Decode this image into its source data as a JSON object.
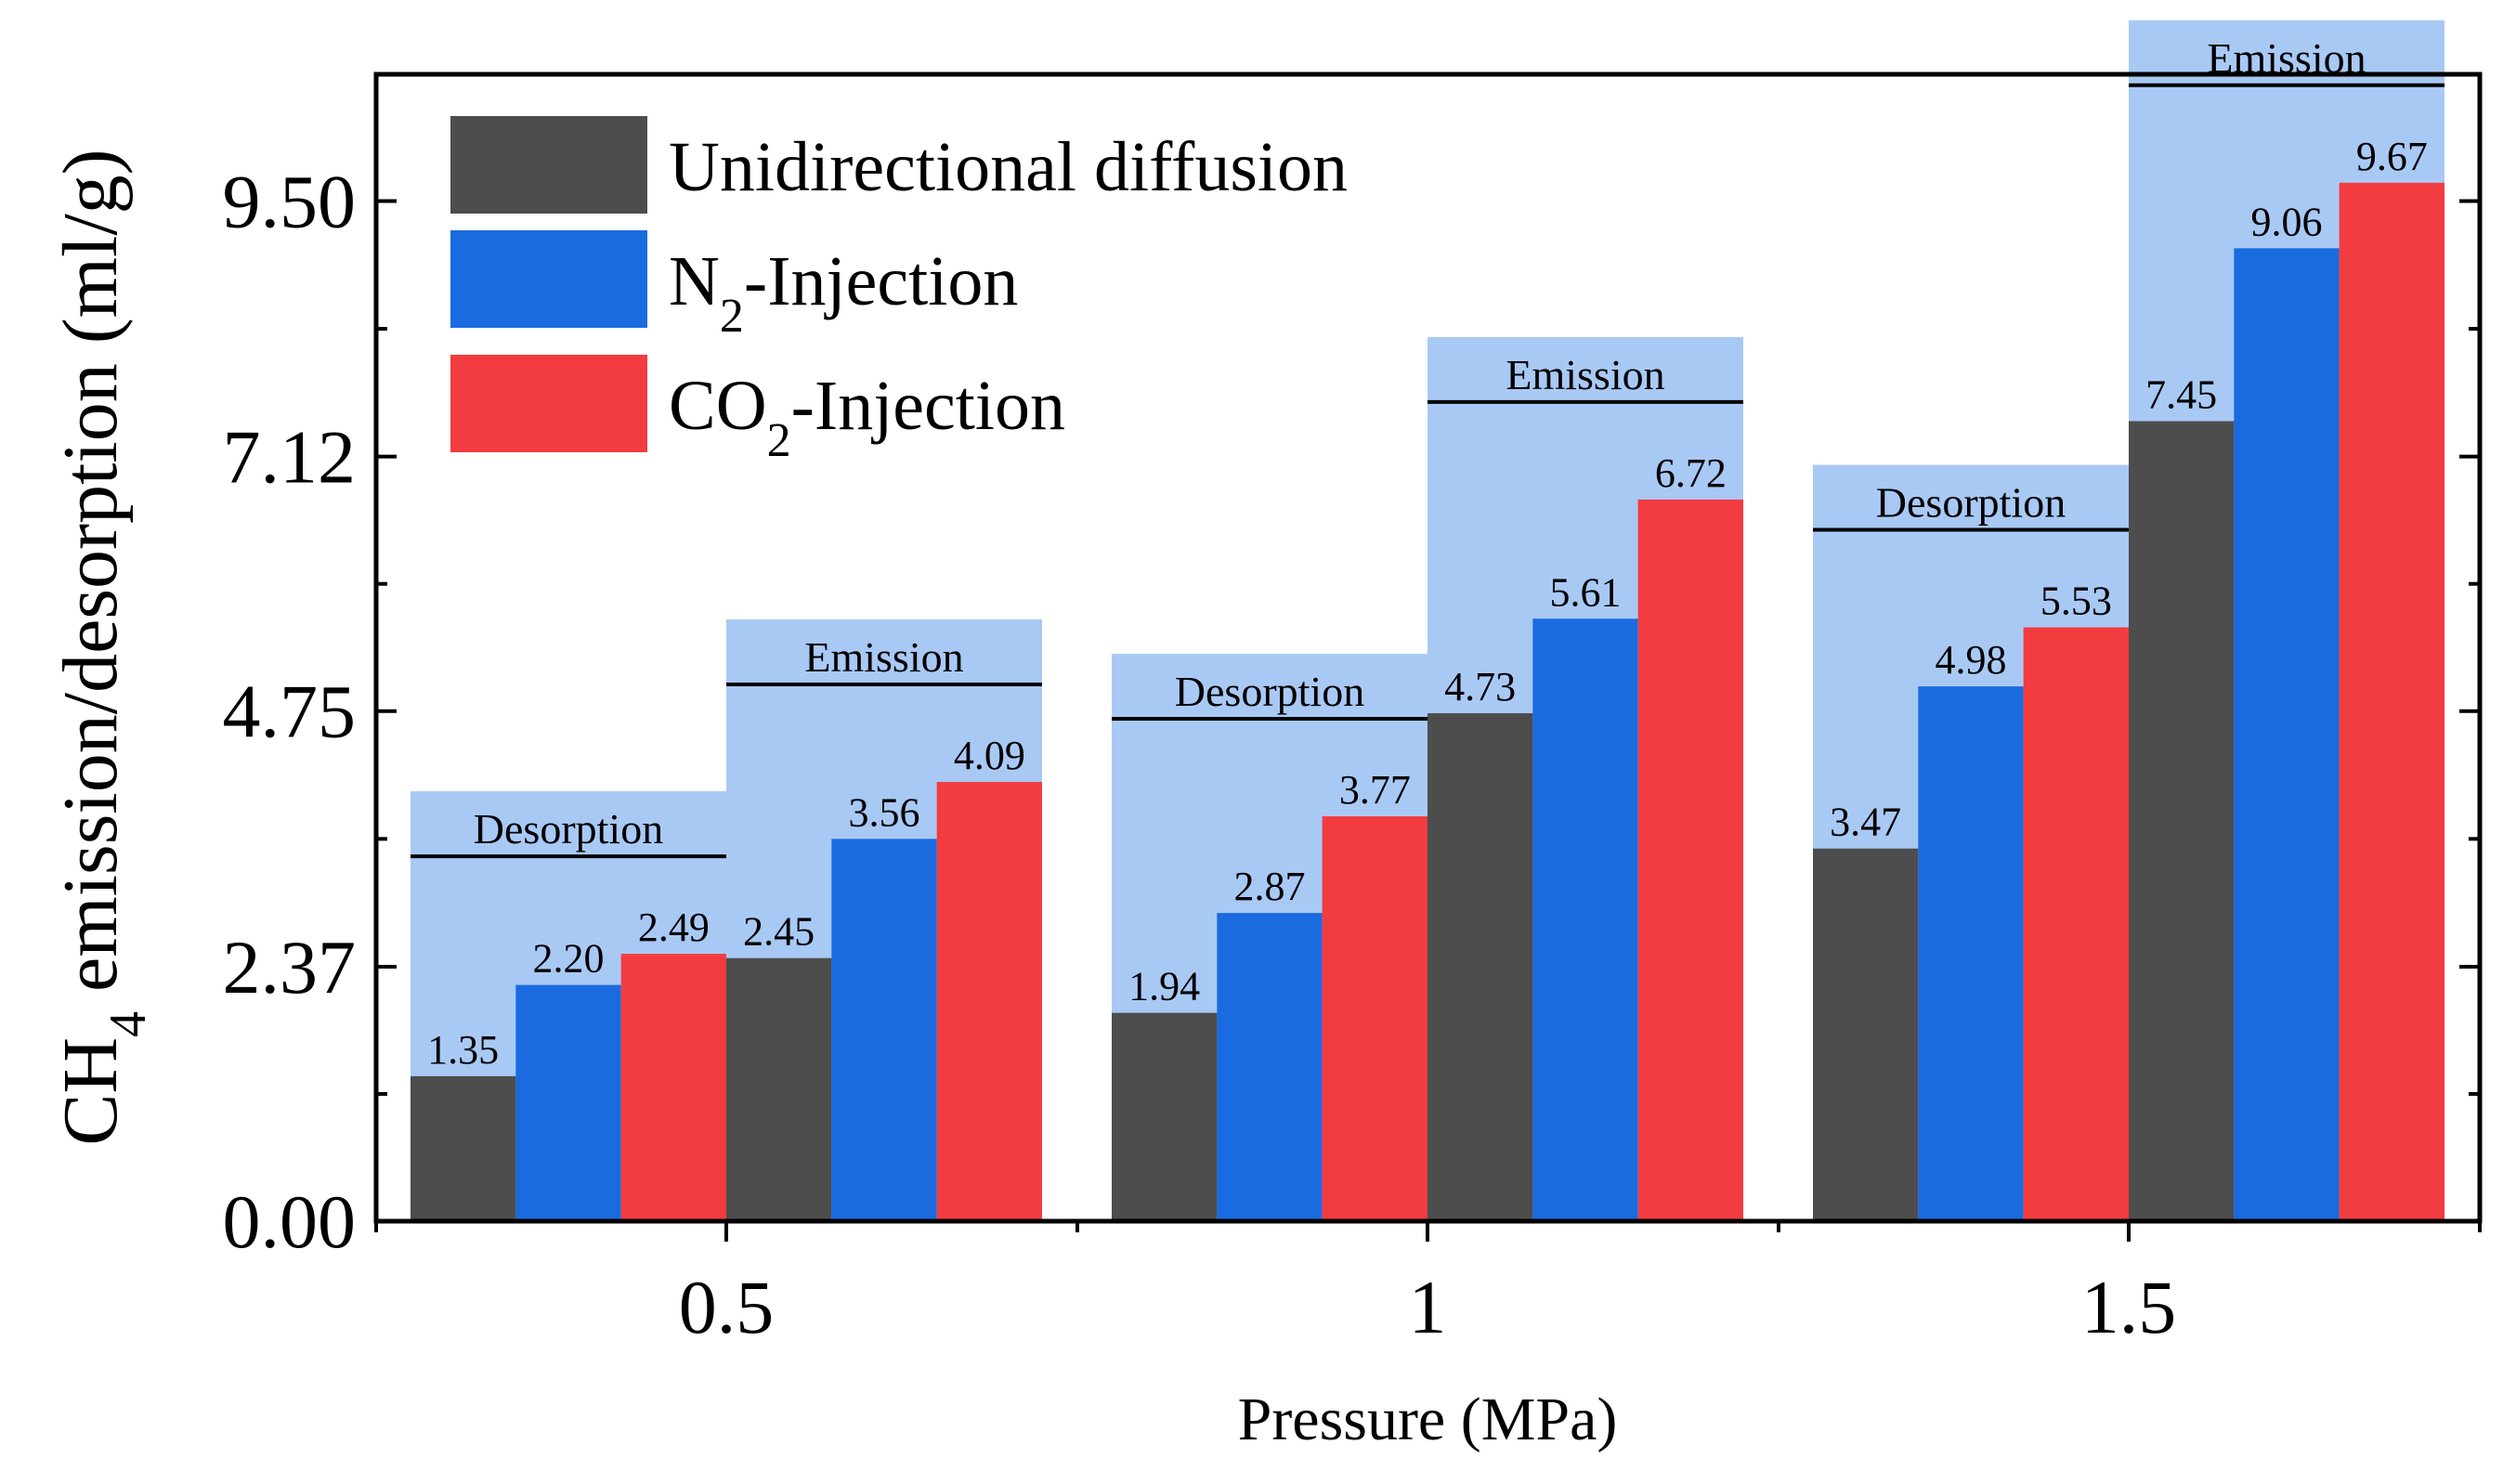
{
  "chart_data": {
    "type": "bar",
    "xlabel": "Pressure (MPa)",
    "ylabel": "CH₄ emission/desorption (ml/g)",
    "ylabel_parts": {
      "pre": "CH",
      "sub": "4",
      "post": " emission/desorption (ml/g)"
    },
    "ylim": [
      0,
      10.68
    ],
    "yticks": [
      "0.00",
      "2.37",
      "4.75",
      "7.12",
      "9.50"
    ],
    "ytick_values": [
      0,
      2.37,
      4.75,
      7.12,
      9.5
    ],
    "categories": [
      "0.5",
      "1",
      "1.5"
    ],
    "subgroups": [
      "Desorption",
      "Emission"
    ],
    "series": [
      {
        "name": "Unidirectional diffusion",
        "color": "#4d4d4d",
        "values": [
          [
            1.35,
            2.45
          ],
          [
            1.94,
            4.73
          ],
          [
            3.47,
            7.45
          ]
        ],
        "labels": [
          [
            "1.35",
            "2.45"
          ],
          [
            "1.94",
            "4.73"
          ],
          [
            "3.47",
            "7.45"
          ]
        ]
      },
      {
        "name": "N₂-Injection",
        "color": "#1a6be0",
        "values": [
          [
            2.2,
            3.56
          ],
          [
            2.87,
            5.61
          ],
          [
            4.98,
            9.06
          ]
        ],
        "labels": [
          [
            "2.20",
            "3.56"
          ],
          [
            "2.87",
            "5.61"
          ],
          [
            "4.98",
            "9.06"
          ]
        ]
      },
      {
        "name": "CO₂-Injection",
        "color": "#f23c40",
        "values": [
          [
            2.49,
            4.09
          ],
          [
            3.77,
            6.72
          ],
          [
            5.53,
            9.67
          ]
        ],
        "labels": [
          [
            "2.49",
            "4.09"
          ],
          [
            "3.77",
            "6.72"
          ],
          [
            "5.53",
            "9.67"
          ]
        ]
      }
    ],
    "legend": [
      {
        "pre": "Unidirectional diffusion",
        "sub": "",
        "post": ""
      },
      {
        "pre": "N",
        "sub": "2",
        "post": "-Injection"
      },
      {
        "pre": "CO",
        "sub": "2",
        "post": "-Injection"
      }
    ],
    "legend_position": "top-left",
    "group_box_color": "#a9c9f5"
  }
}
